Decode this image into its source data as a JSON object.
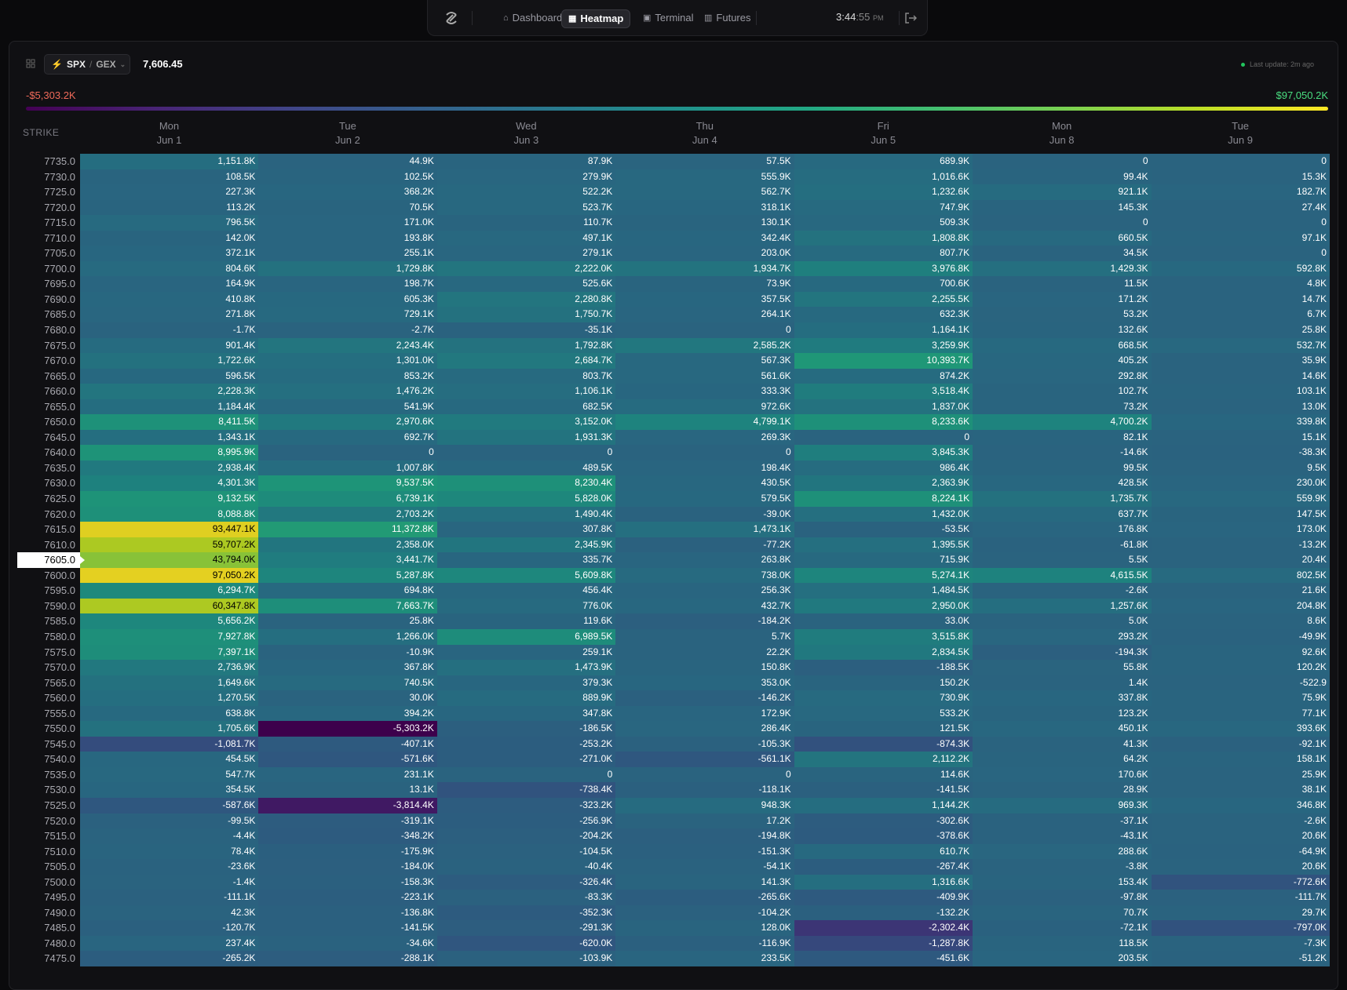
{
  "nav": {
    "items": [
      "Dashboard",
      "Heatmap",
      "Terminal",
      "Futures"
    ]
  },
  "clock": {
    "time": "3:44",
    "seconds": ":55",
    "period": "PM"
  },
  "toolbar": {
    "symbol": "SPX",
    "separator": "/",
    "metric": "GEX",
    "price": "7,606.45",
    "status": "Last update: 2m ago"
  },
  "scale": {
    "min": "-$5,303.2K",
    "max": "$97,050.2K"
  },
  "table": {
    "strike_header": "STRIKE",
    "columns": [
      {
        "day": "Mon",
        "date": "Jun 1"
      },
      {
        "day": "Tue",
        "date": "Jun 2"
      },
      {
        "day": "Wed",
        "date": "Jun 3"
      },
      {
        "day": "Thu",
        "date": "Jun 4"
      },
      {
        "day": "Fri",
        "date": "Jun 5"
      },
      {
        "day": "Mon",
        "date": "Jun 8"
      },
      {
        "day": "Tue",
        "date": "Jun 9"
      }
    ],
    "rows": [
      {
        "strike": "7735.0",
        "cells": [
          "1,151.8K",
          "44.9K",
          "87.9K",
          "57.5K",
          "689.9K",
          "0",
          "0"
        ]
      },
      {
        "strike": "7730.0",
        "cells": [
          "108.5K",
          "102.5K",
          "279.9K",
          "555.9K",
          "1,016.6K",
          "99.4K",
          "15.3K"
        ]
      },
      {
        "strike": "7725.0",
        "cells": [
          "227.3K",
          "368.2K",
          "522.2K",
          "562.7K",
          "1,232.6K",
          "921.1K",
          "182.7K"
        ]
      },
      {
        "strike": "7720.0",
        "cells": [
          "113.2K",
          "70.5K",
          "523.7K",
          "318.1K",
          "747.9K",
          "145.3K",
          "27.4K"
        ]
      },
      {
        "strike": "7715.0",
        "cells": [
          "796.5K",
          "171.0K",
          "110.7K",
          "130.1K",
          "509.3K",
          "0",
          "0"
        ]
      },
      {
        "strike": "7710.0",
        "cells": [
          "142.0K",
          "193.8K",
          "497.1K",
          "342.4K",
          "1,808.8K",
          "660.5K",
          "97.1K"
        ]
      },
      {
        "strike": "7705.0",
        "cells": [
          "372.1K",
          "255.1K",
          "279.1K",
          "203.0K",
          "807.7K",
          "34.5K",
          "0"
        ]
      },
      {
        "strike": "7700.0",
        "cells": [
          "804.6K",
          "1,729.8K",
          "2,222.0K",
          "1,934.7K",
          "3,976.8K",
          "1,429.3K",
          "592.8K"
        ]
      },
      {
        "strike": "7695.0",
        "cells": [
          "164.9K",
          "198.7K",
          "525.6K",
          "73.9K",
          "700.6K",
          "11.5K",
          "4.8K"
        ]
      },
      {
        "strike": "7690.0",
        "cells": [
          "410.8K",
          "605.3K",
          "2,280.8K",
          "357.5K",
          "2,255.5K",
          "171.2K",
          "14.7K"
        ]
      },
      {
        "strike": "7685.0",
        "cells": [
          "271.8K",
          "729.1K",
          "1,750.7K",
          "264.1K",
          "632.3K",
          "53.2K",
          "6.7K"
        ]
      },
      {
        "strike": "7680.0",
        "cells": [
          "-1.7K",
          "-2.7K",
          "-35.1K",
          "0",
          "1,164.1K",
          "132.6K",
          "25.8K"
        ]
      },
      {
        "strike": "7675.0",
        "cells": [
          "901.4K",
          "2,243.4K",
          "1,792.8K",
          "2,585.2K",
          "3,259.9K",
          "668.5K",
          "532.7K"
        ]
      },
      {
        "strike": "7670.0",
        "cells": [
          "1,722.6K",
          "1,301.0K",
          "2,684.7K",
          "567.3K",
          "10,393.7K",
          "405.2K",
          "35.9K"
        ]
      },
      {
        "strike": "7665.0",
        "cells": [
          "596.5K",
          "853.2K",
          "803.7K",
          "561.6K",
          "874.2K",
          "292.8K",
          "14.6K"
        ]
      },
      {
        "strike": "7660.0",
        "cells": [
          "2,228.3K",
          "1,476.2K",
          "1,106.1K",
          "333.3K",
          "3,518.4K",
          "102.7K",
          "103.1K"
        ]
      },
      {
        "strike": "7655.0",
        "cells": [
          "1,184.4K",
          "541.9K",
          "682.5K",
          "972.6K",
          "1,837.0K",
          "73.2K",
          "13.0K"
        ]
      },
      {
        "strike": "7650.0",
        "cells": [
          "8,411.5K",
          "2,970.6K",
          "3,152.0K",
          "4,799.1K",
          "8,233.6K",
          "4,700.2K",
          "339.8K"
        ]
      },
      {
        "strike": "7645.0",
        "cells": [
          "1,343.1K",
          "692.7K",
          "1,931.3K",
          "269.3K",
          "0",
          "82.1K",
          "15.1K"
        ]
      },
      {
        "strike": "7640.0",
        "cells": [
          "8,995.9K",
          "0",
          "0",
          "0",
          "3,845.3K",
          "-14.6K",
          "-38.3K"
        ]
      },
      {
        "strike": "7635.0",
        "cells": [
          "2,938.4K",
          "1,007.8K",
          "489.5K",
          "198.4K",
          "986.4K",
          "99.5K",
          "9.5K"
        ]
      },
      {
        "strike": "7630.0",
        "cells": [
          "4,301.3K",
          "9,537.5K",
          "8,230.4K",
          "430.5K",
          "2,363.9K",
          "428.5K",
          "230.0K"
        ]
      },
      {
        "strike": "7625.0",
        "cells": [
          "9,132.5K",
          "6,739.1K",
          "5,828.0K",
          "579.5K",
          "8,224.1K",
          "1,735.7K",
          "559.9K"
        ]
      },
      {
        "strike": "7620.0",
        "cells": [
          "8,088.8K",
          "2,703.2K",
          "1,490.4K",
          "-39.0K",
          "1,432.0K",
          "637.7K",
          "147.5K"
        ]
      },
      {
        "strike": "7615.0",
        "cells": [
          "93,447.1K",
          "11,372.8K",
          "307.8K",
          "1,473.1K",
          "-53.5K",
          "176.8K",
          "173.0K"
        ]
      },
      {
        "strike": "7610.0",
        "cells": [
          "59,707.2K",
          "2,358.0K",
          "2,345.9K",
          "-77.2K",
          "1,395.5K",
          "-61.8K",
          "-13.2K"
        ]
      },
      {
        "strike": "7605.0",
        "cells": [
          "43,794.0K",
          "3,441.7K",
          "335.7K",
          "263.8K",
          "715.9K",
          "5.5K",
          "20.4K"
        ]
      },
      {
        "strike": "7600.0",
        "cells": [
          "97,050.2K",
          "5,287.8K",
          "5,609.8K",
          "738.0K",
          "5,274.1K",
          "4,615.5K",
          "802.5K"
        ]
      },
      {
        "strike": "7595.0",
        "cells": [
          "6,294.7K",
          "694.8K",
          "456.4K",
          "256.3K",
          "1,484.5K",
          "-2.6K",
          "21.6K"
        ]
      },
      {
        "strike": "7590.0",
        "cells": [
          "60,347.8K",
          "7,663.7K",
          "776.0K",
          "432.7K",
          "2,950.0K",
          "1,257.6K",
          "204.8K"
        ]
      },
      {
        "strike": "7585.0",
        "cells": [
          "5,656.2K",
          "25.8K",
          "119.6K",
          "-184.2K",
          "33.0K",
          "5.0K",
          "8.6K"
        ]
      },
      {
        "strike": "7580.0",
        "cells": [
          "7,927.8K",
          "1,266.0K",
          "6,989.5K",
          "5.7K",
          "3,515.8K",
          "293.2K",
          "-49.9K"
        ]
      },
      {
        "strike": "7575.0",
        "cells": [
          "7,397.1K",
          "-10.9K",
          "259.1K",
          "22.2K",
          "2,834.5K",
          "-194.3K",
          "92.6K"
        ]
      },
      {
        "strike": "7570.0",
        "cells": [
          "2,736.9K",
          "367.8K",
          "1,473.9K",
          "150.8K",
          "-188.5K",
          "55.8K",
          "120.2K"
        ]
      },
      {
        "strike": "7565.0",
        "cells": [
          "1,649.6K",
          "740.5K",
          "379.3K",
          "353.0K",
          "150.2K",
          "1.4K",
          "-522.9"
        ]
      },
      {
        "strike": "7560.0",
        "cells": [
          "1,270.5K",
          "30.0K",
          "889.9K",
          "-146.2K",
          "730.9K",
          "337.8K",
          "75.9K"
        ]
      },
      {
        "strike": "7555.0",
        "cells": [
          "638.8K",
          "394.2K",
          "347.8K",
          "172.9K",
          "533.2K",
          "123.2K",
          "77.1K"
        ]
      },
      {
        "strike": "7550.0",
        "cells": [
          "1,705.6K",
          "-5,303.2K",
          "-186.5K",
          "286.4K",
          "121.5K",
          "450.1K",
          "393.6K"
        ]
      },
      {
        "strike": "7545.0",
        "cells": [
          "-1,081.7K",
          "-407.1K",
          "-253.2K",
          "-105.3K",
          "-874.3K",
          "41.3K",
          "-92.1K"
        ]
      },
      {
        "strike": "7540.0",
        "cells": [
          "454.5K",
          "-571.6K",
          "-271.0K",
          "-561.1K",
          "2,112.2K",
          "64.2K",
          "158.1K"
        ]
      },
      {
        "strike": "7535.0",
        "cells": [
          "547.7K",
          "231.1K",
          "0",
          "0",
          "114.6K",
          "170.6K",
          "25.9K"
        ]
      },
      {
        "strike": "7530.0",
        "cells": [
          "354.5K",
          "13.1K",
          "-738.4K",
          "-118.1K",
          "-141.5K",
          "28.9K",
          "38.1K"
        ]
      },
      {
        "strike": "7525.0",
        "cells": [
          "-587.6K",
          "-3,814.4K",
          "-323.2K",
          "948.3K",
          "1,144.2K",
          "969.3K",
          "346.8K"
        ]
      },
      {
        "strike": "7520.0",
        "cells": [
          "-99.5K",
          "-319.1K",
          "-256.9K",
          "17.2K",
          "-302.6K",
          "-37.1K",
          "-2.6K"
        ]
      },
      {
        "strike": "7515.0",
        "cells": [
          "-4.4K",
          "-348.2K",
          "-204.2K",
          "-194.8K",
          "-378.6K",
          "-43.1K",
          "20.6K"
        ]
      },
      {
        "strike": "7510.0",
        "cells": [
          "78.4K",
          "-175.9K",
          "-104.5K",
          "-151.3K",
          "610.7K",
          "288.6K",
          "-64.9K"
        ]
      },
      {
        "strike": "7505.0",
        "cells": [
          "-23.6K",
          "-184.0K",
          "-40.4K",
          "-54.1K",
          "-267.4K",
          "-3.8K",
          "20.6K"
        ]
      },
      {
        "strike": "7500.0",
        "cells": [
          "-1.4K",
          "-158.3K",
          "-326.4K",
          "141.3K",
          "1,316.6K",
          "153.4K",
          "-772.6K"
        ]
      },
      {
        "strike": "7495.0",
        "cells": [
          "-111.1K",
          "-223.1K",
          "-83.3K",
          "-265.6K",
          "-409.9K",
          "-97.8K",
          "-111.7K"
        ]
      },
      {
        "strike": "7490.0",
        "cells": [
          "42.3K",
          "-136.8K",
          "-352.3K",
          "-104.2K",
          "-132.2K",
          "70.7K",
          "29.7K"
        ]
      },
      {
        "strike": "7485.0",
        "cells": [
          "-120.7K",
          "-141.5K",
          "-291.3K",
          "128.0K",
          "-2,302.4K",
          "-72.1K",
          "-797.0K"
        ]
      },
      {
        "strike": "7480.0",
        "cells": [
          "237.4K",
          "-34.6K",
          "-620.0K",
          "-116.9K",
          "-1,287.8K",
          "118.5K",
          "-7.3K"
        ]
      },
      {
        "strike": "7475.0",
        "cells": [
          "-265.2K",
          "-288.1K",
          "-103.9K",
          "233.5K",
          "-451.6K",
          "203.5K",
          "-51.2K"
        ]
      }
    ]
  }
}
